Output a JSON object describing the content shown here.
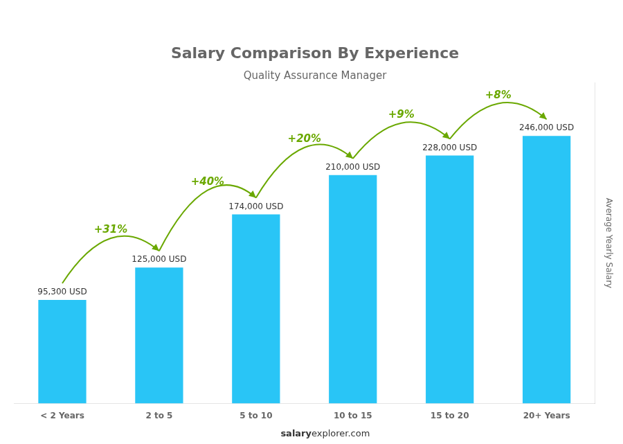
{
  "chart_data": {
    "type": "bar",
    "title": "Salary Comparison By Experience",
    "subtitle": "Quality Assurance Manager",
    "categories": [
      "< 2 Years",
      "2 to 5",
      "5 to 10",
      "10 to 15",
      "15 to 20",
      "20+ Years"
    ],
    "values": [
      95300,
      125000,
      174000,
      210000,
      228000,
      246000
    ],
    "value_labels": [
      "95,300 USD",
      "125,000 USD",
      "174,000 USD",
      "210,000 USD",
      "228,000 USD",
      "246,000 USD"
    ],
    "data_labels": true,
    "color": "#29c5f6",
    "ylabel": "Average Yearly Salary",
    "ylim": [
      0,
      295000
    ],
    "tick_labels": "x",
    "grid": false,
    "annotations": [
      {
        "text": "+31%",
        "from": "< 2 Years",
        "to": "2 to 5"
      },
      {
        "text": "+40%",
        "from": "2 to 5",
        "to": "5 to 10"
      },
      {
        "text": "+20%",
        "from": "5 to 10",
        "to": "10 to 15"
      },
      {
        "text": "+9%",
        "from": "10 to 15",
        "to": "15 to 20"
      },
      {
        "text": "+8%",
        "from": "15 to 20",
        "to": "20+ Years"
      }
    ],
    "watermark": [
      "salary",
      "explorer.com"
    ]
  }
}
